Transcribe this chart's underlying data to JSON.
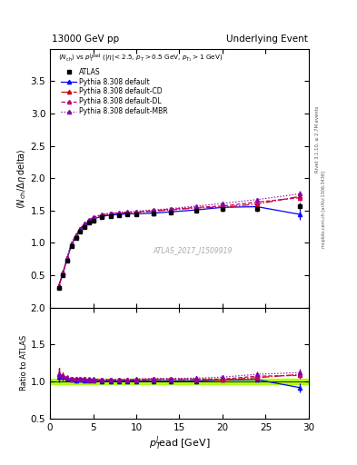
{
  "title_left": "13000 GeV pp",
  "title_right": "Underlying Event",
  "xlabel": "p_{T}^{lead} [GeV]",
  "ylabel_main": "<N_{ch} / #Delta#eta delta>",
  "ylabel_ratio": "Ratio to ATLAS",
  "watermark": "ATLAS_2017_I1509919",
  "right_label1": "Rivet 3.1.10, ≥ 2.7M events",
  "right_label2": "mcplots.cern.ch [arXiv:1306.3436]",
  "xlim": [
    0,
    30
  ],
  "ylim_main": [
    0,
    4
  ],
  "ylim_ratio": [
    0.5,
    2.0
  ],
  "yticks_main": [
    0.5,
    1.0,
    1.5,
    2.0,
    2.5,
    3.0,
    3.5
  ],
  "yticks_ratio": [
    0.5,
    1.0,
    1.5,
    2.0
  ],
  "xticks": [
    0,
    5,
    10,
    15,
    20,
    25,
    30
  ],
  "atlas_x": [
    1.0,
    1.5,
    2.0,
    2.5,
    3.0,
    3.5,
    4.0,
    4.5,
    5.0,
    6.0,
    7.0,
    8.0,
    9.0,
    10.0,
    12.0,
    14.0,
    17.0,
    20.0,
    24.0,
    29.0
  ],
  "atlas_y": [
    0.3,
    0.5,
    0.73,
    0.95,
    1.08,
    1.17,
    1.25,
    1.31,
    1.35,
    1.4,
    1.42,
    1.43,
    1.44,
    1.44,
    1.45,
    1.47,
    1.5,
    1.52,
    1.52,
    1.57
  ],
  "atlas_yerr": [
    0.02,
    0.02,
    0.02,
    0.02,
    0.02,
    0.02,
    0.02,
    0.02,
    0.02,
    0.02,
    0.02,
    0.02,
    0.02,
    0.02,
    0.02,
    0.02,
    0.02,
    0.03,
    0.04,
    0.05
  ],
  "pythia_default_x": [
    1.0,
    1.5,
    2.0,
    2.5,
    3.0,
    3.5,
    4.0,
    4.5,
    5.0,
    6.0,
    7.0,
    8.0,
    9.0,
    10.0,
    12.0,
    14.0,
    17.0,
    20.0,
    24.0,
    29.0
  ],
  "pythia_default_y": [
    0.32,
    0.53,
    0.76,
    0.97,
    1.1,
    1.2,
    1.27,
    1.33,
    1.37,
    1.41,
    1.43,
    1.44,
    1.45,
    1.45,
    1.46,
    1.48,
    1.51,
    1.55,
    1.56,
    1.44
  ],
  "pythia_default_yerr": [
    0.01,
    0.01,
    0.01,
    0.01,
    0.01,
    0.01,
    0.01,
    0.01,
    0.01,
    0.01,
    0.01,
    0.01,
    0.01,
    0.01,
    0.01,
    0.01,
    0.01,
    0.01,
    0.02,
    0.08
  ],
  "pythia_cd_x": [
    1.0,
    1.5,
    2.0,
    2.5,
    3.0,
    3.5,
    4.0,
    4.5,
    5.0,
    6.0,
    7.0,
    8.0,
    9.0,
    10.0,
    12.0,
    14.0,
    17.0,
    20.0,
    24.0,
    29.0
  ],
  "pythia_cd_y": [
    0.33,
    0.54,
    0.77,
    0.99,
    1.12,
    1.22,
    1.29,
    1.35,
    1.39,
    1.43,
    1.45,
    1.46,
    1.47,
    1.47,
    1.49,
    1.51,
    1.54,
    1.55,
    1.6,
    1.72
  ],
  "pythia_cd_yerr": [
    0.01,
    0.01,
    0.01,
    0.01,
    0.01,
    0.01,
    0.01,
    0.01,
    0.01,
    0.01,
    0.01,
    0.01,
    0.01,
    0.01,
    0.01,
    0.01,
    0.01,
    0.02,
    0.02,
    0.05
  ],
  "pythia_dl_x": [
    1.0,
    1.5,
    2.0,
    2.5,
    3.0,
    3.5,
    4.0,
    4.5,
    5.0,
    6.0,
    7.0,
    8.0,
    9.0,
    10.0,
    12.0,
    14.0,
    17.0,
    20.0,
    24.0,
    29.0
  ],
  "pythia_dl_y": [
    0.33,
    0.54,
    0.77,
    0.99,
    1.12,
    1.22,
    1.29,
    1.35,
    1.39,
    1.43,
    1.45,
    1.46,
    1.47,
    1.48,
    1.5,
    1.52,
    1.55,
    1.57,
    1.63,
    1.7
  ],
  "pythia_dl_yerr": [
    0.01,
    0.01,
    0.01,
    0.01,
    0.01,
    0.01,
    0.01,
    0.01,
    0.01,
    0.01,
    0.01,
    0.01,
    0.01,
    0.01,
    0.01,
    0.01,
    0.01,
    0.02,
    0.02,
    0.05
  ],
  "pythia_mbr_x": [
    1.0,
    1.5,
    2.0,
    2.5,
    3.0,
    3.5,
    4.0,
    4.5,
    5.0,
    6.0,
    7.0,
    8.0,
    9.0,
    10.0,
    12.0,
    14.0,
    17.0,
    20.0,
    24.0,
    29.0
  ],
  "pythia_mbr_y": [
    0.33,
    0.54,
    0.77,
    0.99,
    1.12,
    1.22,
    1.3,
    1.36,
    1.4,
    1.44,
    1.46,
    1.47,
    1.48,
    1.49,
    1.51,
    1.53,
    1.57,
    1.61,
    1.67,
    1.76
  ],
  "pythia_mbr_yerr": [
    0.01,
    0.01,
    0.01,
    0.01,
    0.01,
    0.01,
    0.01,
    0.01,
    0.01,
    0.01,
    0.01,
    0.01,
    0.01,
    0.01,
    0.01,
    0.01,
    0.01,
    0.02,
    0.02,
    0.05
  ],
  "color_default": "#0000ff",
  "color_cd": "#cc0000",
  "color_dl": "#cc0066",
  "color_mbr": "#8800aa",
  "color_atlas": "#000000",
  "color_band": "#aaff00",
  "legend_entries": [
    "ATLAS",
    "Pythia 8.308 default",
    "Pythia 8.308 default-CD",
    "Pythia 8.308 default-DL",
    "Pythia 8.308 default-MBR"
  ]
}
